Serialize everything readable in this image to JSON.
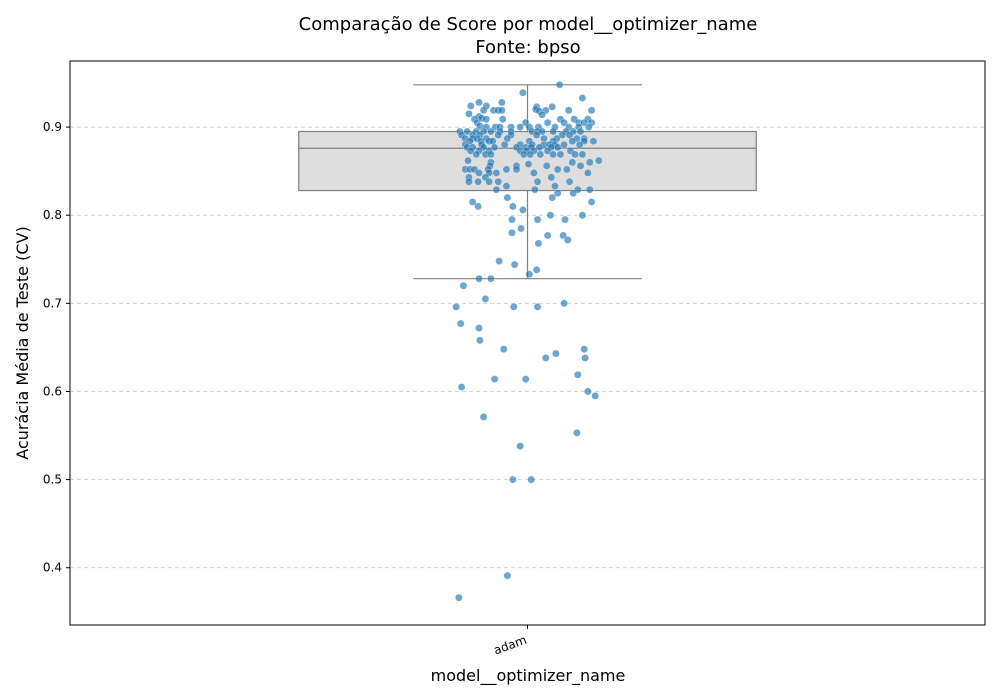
{
  "chart_data": {
    "type": "boxplot-strip",
    "title": "Comparação de Score por model__optimizer_name",
    "subtitle": "Fonte: bpso",
    "xlabel": "model__optimizer_name",
    "ylabel": "Acurácia Média de Teste (CV)",
    "categories": [
      "adam"
    ],
    "ylim": [
      0.335,
      0.975
    ],
    "yticks": [
      0.4,
      0.5,
      0.6,
      0.7,
      0.8,
      0.9
    ],
    "ytick_labels": [
      "0.4",
      "0.5",
      "0.6",
      "0.7",
      "0.8",
      "0.9"
    ],
    "grid": "y-dashed",
    "box": {
      "category": "adam",
      "whisker_low": 0.728,
      "q1": 0.828,
      "median": 0.876,
      "q3": 0.895,
      "whisker_high": 0.948,
      "color": "#dedede",
      "edge_color": "#808080"
    },
    "points_color": "#1f77b4",
    "points": [
      {
        "offset": 0.35,
        "y": 0.948
      },
      {
        "offset": -0.05,
        "y": 0.939
      },
      {
        "offset": 0.6,
        "y": 0.933
      },
      {
        "offset": -0.53,
        "y": 0.928
      },
      {
        "offset": -0.28,
        "y": 0.928
      },
      {
        "offset": -0.62,
        "y": 0.924
      },
      {
        "offset": -0.45,
        "y": 0.924
      },
      {
        "offset": 0.1,
        "y": 0.923
      },
      {
        "offset": 0.27,
        "y": 0.923
      },
      {
        "offset": 0.09,
        "y": 0.92
      },
      {
        "offset": -0.48,
        "y": 0.919
      },
      {
        "offset": -0.37,
        "y": 0.919
      },
      {
        "offset": -0.32,
        "y": 0.919
      },
      {
        "offset": -0.28,
        "y": 0.919
      },
      {
        "offset": 0.2,
        "y": 0.919
      },
      {
        "offset": 0.45,
        "y": 0.919
      },
      {
        "offset": 0.7,
        "y": 0.919
      },
      {
        "offset": 0.13,
        "y": 0.918
      },
      {
        "offset": -0.64,
        "y": 0.915
      },
      {
        "offset": 0.16,
        "y": 0.914
      },
      {
        "offset": -0.53,
        "y": 0.912
      },
      {
        "offset": -0.5,
        "y": 0.91
      },
      {
        "offset": -0.58,
        "y": 0.909
      },
      {
        "offset": -0.45,
        "y": 0.909
      },
      {
        "offset": -0.27,
        "y": 0.909
      },
      {
        "offset": 0.36,
        "y": 0.909
      },
      {
        "offset": 0.51,
        "y": 0.909
      },
      {
        "offset": 0.66,
        "y": 0.909
      },
      {
        "offset": -0.55,
        "y": 0.905
      },
      {
        "offset": -0.02,
        "y": 0.905
      },
      {
        "offset": 0.22,
        "y": 0.905
      },
      {
        "offset": 0.4,
        "y": 0.905
      },
      {
        "offset": 0.56,
        "y": 0.905
      },
      {
        "offset": 0.62,
        "y": 0.905
      },
      {
        "offset": 0.7,
        "y": 0.905
      },
      {
        "offset": -0.52,
        "y": 0.901
      },
      {
        "offset": -0.45,
        "y": 0.9
      },
      {
        "offset": -0.35,
        "y": 0.9
      },
      {
        "offset": -0.3,
        "y": 0.9
      },
      {
        "offset": -0.18,
        "y": 0.9
      },
      {
        "offset": -0.08,
        "y": 0.9
      },
      {
        "offset": 0.02,
        "y": 0.9
      },
      {
        "offset": 0.12,
        "y": 0.9
      },
      {
        "offset": 0.3,
        "y": 0.9
      },
      {
        "offset": 0.45,
        "y": 0.9
      },
      {
        "offset": 0.56,
        "y": 0.9
      },
      {
        "offset": 0.67,
        "y": 0.9
      },
      {
        "offset": -0.74,
        "y": 0.895
      },
      {
        "offset": -0.66,
        "y": 0.895
      },
      {
        "offset": -0.56,
        "y": 0.895
      },
      {
        "offset": -0.48,
        "y": 0.895
      },
      {
        "offset": -0.4,
        "y": 0.895
      },
      {
        "offset": -0.3,
        "y": 0.895
      },
      {
        "offset": -0.18,
        "y": 0.895
      },
      {
        "offset": 0.05,
        "y": 0.895
      },
      {
        "offset": 0.11,
        "y": 0.895
      },
      {
        "offset": 0.16,
        "y": 0.895
      },
      {
        "offset": 0.28,
        "y": 0.895
      },
      {
        "offset": 0.42,
        "y": 0.895
      },
      {
        "offset": 0.5,
        "y": 0.895
      },
      {
        "offset": 0.58,
        "y": 0.895
      },
      {
        "offset": -0.72,
        "y": 0.891
      },
      {
        "offset": -0.6,
        "y": 0.891
      },
      {
        "offset": -0.52,
        "y": 0.891
      },
      {
        "offset": -0.32,
        "y": 0.891
      },
      {
        "offset": -0.18,
        "y": 0.891
      },
      {
        "offset": 0.1,
        "y": 0.891
      },
      {
        "offset": 0.38,
        "y": 0.891
      },
      {
        "offset": 0.46,
        "y": 0.891
      },
      {
        "offset": -0.68,
        "y": 0.887
      },
      {
        "offset": -0.6,
        "y": 0.887
      },
      {
        "offset": -0.55,
        "y": 0.887
      },
      {
        "offset": -0.45,
        "y": 0.887
      },
      {
        "offset": -0.22,
        "y": 0.887
      },
      {
        "offset": 0.18,
        "y": 0.887
      },
      {
        "offset": 0.32,
        "y": 0.887
      },
      {
        "offset": 0.54,
        "y": 0.887
      },
      {
        "offset": 0.62,
        "y": 0.887
      },
      {
        "offset": -0.63,
        "y": 0.884
      },
      {
        "offset": -0.51,
        "y": 0.884
      },
      {
        "offset": -0.42,
        "y": 0.884
      },
      {
        "offset": -0.38,
        "y": 0.884
      },
      {
        "offset": 0.02,
        "y": 0.884
      },
      {
        "offset": 0.28,
        "y": 0.884
      },
      {
        "offset": 0.49,
        "y": 0.884
      },
      {
        "offset": 0.62,
        "y": 0.884
      },
      {
        "offset": 0.72,
        "y": 0.884
      },
      {
        "offset": -0.68,
        "y": 0.88
      },
      {
        "offset": -0.5,
        "y": 0.88
      },
      {
        "offset": -0.25,
        "y": 0.88
      },
      {
        "offset": -0.08,
        "y": 0.88
      },
      {
        "offset": 0.05,
        "y": 0.88
      },
      {
        "offset": 0.18,
        "y": 0.88
      },
      {
        "offset": 0.24,
        "y": 0.88
      },
      {
        "offset": 0.3,
        "y": 0.88
      },
      {
        "offset": 0.4,
        "y": 0.88
      },
      {
        "offset": 0.57,
        "y": 0.88
      },
      {
        "offset": -0.66,
        "y": 0.877
      },
      {
        "offset": -0.6,
        "y": 0.877
      },
      {
        "offset": -0.48,
        "y": 0.877
      },
      {
        "offset": -0.36,
        "y": 0.877
      },
      {
        "offset": -0.12,
        "y": 0.877
      },
      {
        "offset": -0.02,
        "y": 0.877
      },
      {
        "offset": 0.04,
        "y": 0.877
      },
      {
        "offset": 0.13,
        "y": 0.877
      },
      {
        "offset": 0.26,
        "y": 0.877
      },
      {
        "offset": 0.33,
        "y": 0.877
      },
      {
        "offset": -0.62,
        "y": 0.873
      },
      {
        "offset": -0.53,
        "y": 0.873
      },
      {
        "offset": -0.42,
        "y": 0.873
      },
      {
        "offset": -0.08,
        "y": 0.873
      },
      {
        "offset": -0.01,
        "y": 0.873
      },
      {
        "offset": 0.07,
        "y": 0.873
      },
      {
        "offset": 0.22,
        "y": 0.873
      },
      {
        "offset": 0.47,
        "y": 0.873
      },
      {
        "offset": -0.56,
        "y": 0.869
      },
      {
        "offset": -0.46,
        "y": 0.869
      },
      {
        "offset": -0.4,
        "y": 0.869
      },
      {
        "offset": -0.04,
        "y": 0.869
      },
      {
        "offset": 0.03,
        "y": 0.869
      },
      {
        "offset": 0.14,
        "y": 0.869
      },
      {
        "offset": 0.28,
        "y": 0.869
      },
      {
        "offset": 0.36,
        "y": 0.869
      },
      {
        "offset": 0.52,
        "y": 0.869
      },
      {
        "offset": 0.6,
        "y": 0.869
      },
      {
        "offset": -0.65,
        "y": 0.862
      },
      {
        "offset": -0.4,
        "y": 0.86
      },
      {
        "offset": 0.01,
        "y": 0.858
      },
      {
        "offset": 0.49,
        "y": 0.86
      },
      {
        "offset": 0.68,
        "y": 0.86
      },
      {
        "offset": 0.78,
        "y": 0.862
      },
      {
        "offset": -0.41,
        "y": 0.856
      },
      {
        "offset": -0.12,
        "y": 0.856
      },
      {
        "offset": 0.21,
        "y": 0.856
      },
      {
        "offset": 0.58,
        "y": 0.856
      },
      {
        "offset": -0.68,
        "y": 0.852
      },
      {
        "offset": -0.63,
        "y": 0.852
      },
      {
        "offset": -0.58,
        "y": 0.852
      },
      {
        "offset": -0.43,
        "y": 0.852
      },
      {
        "offset": -0.23,
        "y": 0.852
      },
      {
        "offset": -0.12,
        "y": 0.852
      },
      {
        "offset": 0.33,
        "y": 0.852
      },
      {
        "offset": 0.43,
        "y": 0.852
      },
      {
        "offset": -0.53,
        "y": 0.848
      },
      {
        "offset": -0.42,
        "y": 0.848
      },
      {
        "offset": -0.34,
        "y": 0.848
      },
      {
        "offset": 0.07,
        "y": 0.848
      },
      {
        "offset": 0.66,
        "y": 0.848
      },
      {
        "offset": -0.64,
        "y": 0.843
      },
      {
        "offset": -0.46,
        "y": 0.843
      },
      {
        "offset": 0.26,
        "y": 0.843
      },
      {
        "offset": -0.64,
        "y": 0.838
      },
      {
        "offset": -0.54,
        "y": 0.838
      },
      {
        "offset": -0.42,
        "y": 0.838
      },
      {
        "offset": -0.32,
        "y": 0.838
      },
      {
        "offset": 0.11,
        "y": 0.838
      },
      {
        "offset": 0.46,
        "y": 0.838
      },
      {
        "offset": -0.23,
        "y": 0.833
      },
      {
        "offset": 0.3,
        "y": 0.833
      },
      {
        "offset": -0.34,
        "y": 0.829
      },
      {
        "offset": 0.08,
        "y": 0.829
      },
      {
        "offset": 0.55,
        "y": 0.829
      },
      {
        "offset": 0.68,
        "y": 0.829
      },
      {
        "offset": 0.33,
        "y": 0.825
      },
      {
        "offset": 0.5,
        "y": 0.825
      },
      {
        "offset": -0.22,
        "y": 0.82
      },
      {
        "offset": 0.27,
        "y": 0.82
      },
      {
        "offset": -0.6,
        "y": 0.815
      },
      {
        "offset": 0.7,
        "y": 0.815
      },
      {
        "offset": -0.54,
        "y": 0.81
      },
      {
        "offset": -0.16,
        "y": 0.81
      },
      {
        "offset": -0.05,
        "y": 0.806
      },
      {
        "offset": 0.6,
        "y": 0.8
      },
      {
        "offset": 0.25,
        "y": 0.8
      },
      {
        "offset": -0.17,
        "y": 0.795
      },
      {
        "offset": 0.11,
        "y": 0.795
      },
      {
        "offset": 0.41,
        "y": 0.795
      },
      {
        "offset": -0.07,
        "y": 0.785
      },
      {
        "offset": -0.17,
        "y": 0.78
      },
      {
        "offset": 0.22,
        "y": 0.777
      },
      {
        "offset": 0.39,
        "y": 0.777
      },
      {
        "offset": 0.44,
        "y": 0.772
      },
      {
        "offset": 0.12,
        "y": 0.768
      },
      {
        "offset": -0.31,
        "y": 0.748
      },
      {
        "offset": -0.14,
        "y": 0.744
      },
      {
        "offset": 0.1,
        "y": 0.738
      },
      {
        "offset": 0.02,
        "y": 0.733
      },
      {
        "offset": -0.53,
        "y": 0.728
      },
      {
        "offset": -0.4,
        "y": 0.728
      },
      {
        "offset": -0.7,
        "y": 0.72
      },
      {
        "offset": -0.46,
        "y": 0.705
      },
      {
        "offset": 0.4,
        "y": 0.7
      },
      {
        "offset": -0.78,
        "y": 0.696
      },
      {
        "offset": -0.15,
        "y": 0.696
      },
      {
        "offset": 0.11,
        "y": 0.696
      },
      {
        "offset": -0.73,
        "y": 0.677
      },
      {
        "offset": -0.53,
        "y": 0.672
      },
      {
        "offset": -0.52,
        "y": 0.658
      },
      {
        "offset": -0.26,
        "y": 0.648
      },
      {
        "offset": 0.62,
        "y": 0.648
      },
      {
        "offset": 0.31,
        "y": 0.643
      },
      {
        "offset": 0.2,
        "y": 0.638
      },
      {
        "offset": 0.63,
        "y": 0.638
      },
      {
        "offset": 0.55,
        "y": 0.619
      },
      {
        "offset": -0.36,
        "y": 0.614
      },
      {
        "offset": -0.02,
        "y": 0.614
      },
      {
        "offset": -0.72,
        "y": 0.605
      },
      {
        "offset": 0.66,
        "y": 0.6
      },
      {
        "offset": 0.74,
        "y": 0.595
      },
      {
        "offset": -0.48,
        "y": 0.571
      },
      {
        "offset": 0.54,
        "y": 0.553
      },
      {
        "offset": -0.08,
        "y": 0.538
      },
      {
        "offset": -0.16,
        "y": 0.5
      },
      {
        "offset": 0.04,
        "y": 0.5
      },
      {
        "offset": -0.22,
        "y": 0.391
      },
      {
        "offset": -0.75,
        "y": 0.366
      }
    ]
  }
}
